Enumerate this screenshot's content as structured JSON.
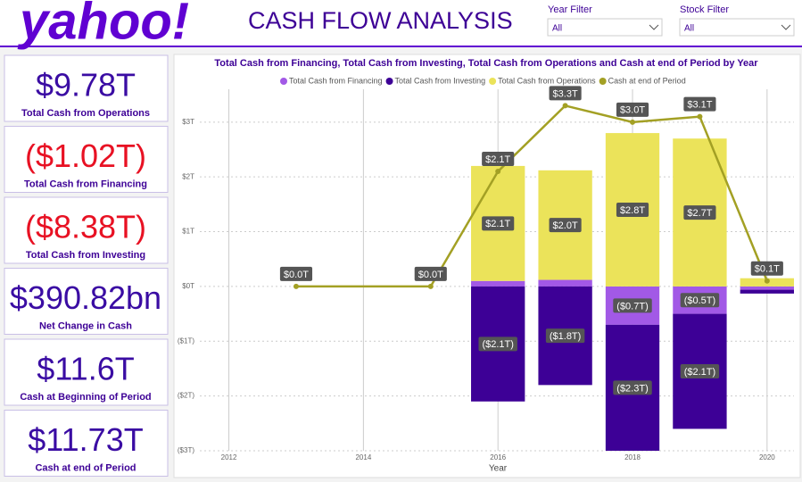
{
  "header": {
    "logo": "yahoo!",
    "title": "CASH FLOW ANALYSIS"
  },
  "filters": [
    {
      "label": "Year Filter",
      "value": "All"
    },
    {
      "label": "Stock Filter",
      "value": "All"
    }
  ],
  "cards": [
    {
      "value": "$9.78T",
      "label": "Total Cash from Operations",
      "color": "#3a0ca3"
    },
    {
      "value": "($1.02T)",
      "label": "Total Cash from Financing",
      "color": "#e81123"
    },
    {
      "value": "($8.38T)",
      "label": "Total Cash from Investing",
      "color": "#e81123"
    },
    {
      "value": "$390.82bn",
      "label": "Net Change in Cash",
      "color": "#3a0ca3"
    },
    {
      "value": "$11.6T",
      "label": "Cash at Beginning of Period",
      "color": "#3a0ca3"
    },
    {
      "value": "$11.73T",
      "label": "Cash at end of Period",
      "color": "#3a0ca3"
    }
  ],
  "chart_data": {
    "type": "bar",
    "title": "Total Cash from Financing, Total Cash from Investing, Total Cash from Operations and Cash at end of Period by Year",
    "x_label": "Year",
    "x": [
      2013,
      2015,
      2016,
      2017,
      2018,
      2019,
      2020
    ],
    "series": [
      {
        "name": "Total Cash from Financing",
        "color": "#a259e6",
        "kind": "bar",
        "values": [
          null,
          null,
          0.1,
          0.12,
          -0.7,
          -0.5,
          -0.06
        ],
        "value_labels": [
          null,
          null,
          null,
          null,
          "($0.7T)",
          "($0.5T)",
          null
        ]
      },
      {
        "name": "Total Cash from Investing",
        "color": "#3d0096",
        "kind": "bar",
        "values": [
          null,
          null,
          -2.1,
          -1.8,
          -2.3,
          -2.1,
          -0.07
        ],
        "value_labels": [
          null,
          null,
          "($2.1T)",
          "($1.8T)",
          "($2.3T)",
          "($2.1T)",
          null
        ]
      },
      {
        "name": "Total Cash from Operations",
        "color": "#ebe35a",
        "kind": "bar",
        "values": [
          null,
          null,
          2.1,
          2.0,
          2.8,
          2.7,
          0.15
        ],
        "value_labels": [
          null,
          null,
          "$2.1T",
          "$2.0T",
          "$2.8T",
          "$2.7T",
          null
        ]
      },
      {
        "name": "Cash at end of Period",
        "color": "#a3a024",
        "kind": "line",
        "values": [
          0,
          0,
          2.1,
          3.3,
          3.0,
          3.1,
          0.1
        ],
        "value_labels": [
          "$0.0T",
          "$0.0T",
          "$2.1T",
          "$3.3T",
          "$3.0T",
          "$3.1T",
          "$0.1T"
        ]
      }
    ],
    "xlim": [
      2011.25,
      2020.4
    ],
    "xticks": [
      2012,
      2014,
      2016,
      2018,
      2020
    ],
    "ylim": [
      -3,
      3.6
    ],
    "yticks": [
      {
        "value": -3,
        "label": "($3T)"
      },
      {
        "value": -2,
        "label": "($2T)"
      },
      {
        "value": -1,
        "label": "($1T)"
      },
      {
        "value": 0,
        "label": "$0T"
      },
      {
        "value": 1,
        "label": "$1T"
      },
      {
        "value": 2,
        "label": "$2T"
      },
      {
        "value": 3,
        "label": "$3T"
      }
    ],
    "grid": true
  }
}
